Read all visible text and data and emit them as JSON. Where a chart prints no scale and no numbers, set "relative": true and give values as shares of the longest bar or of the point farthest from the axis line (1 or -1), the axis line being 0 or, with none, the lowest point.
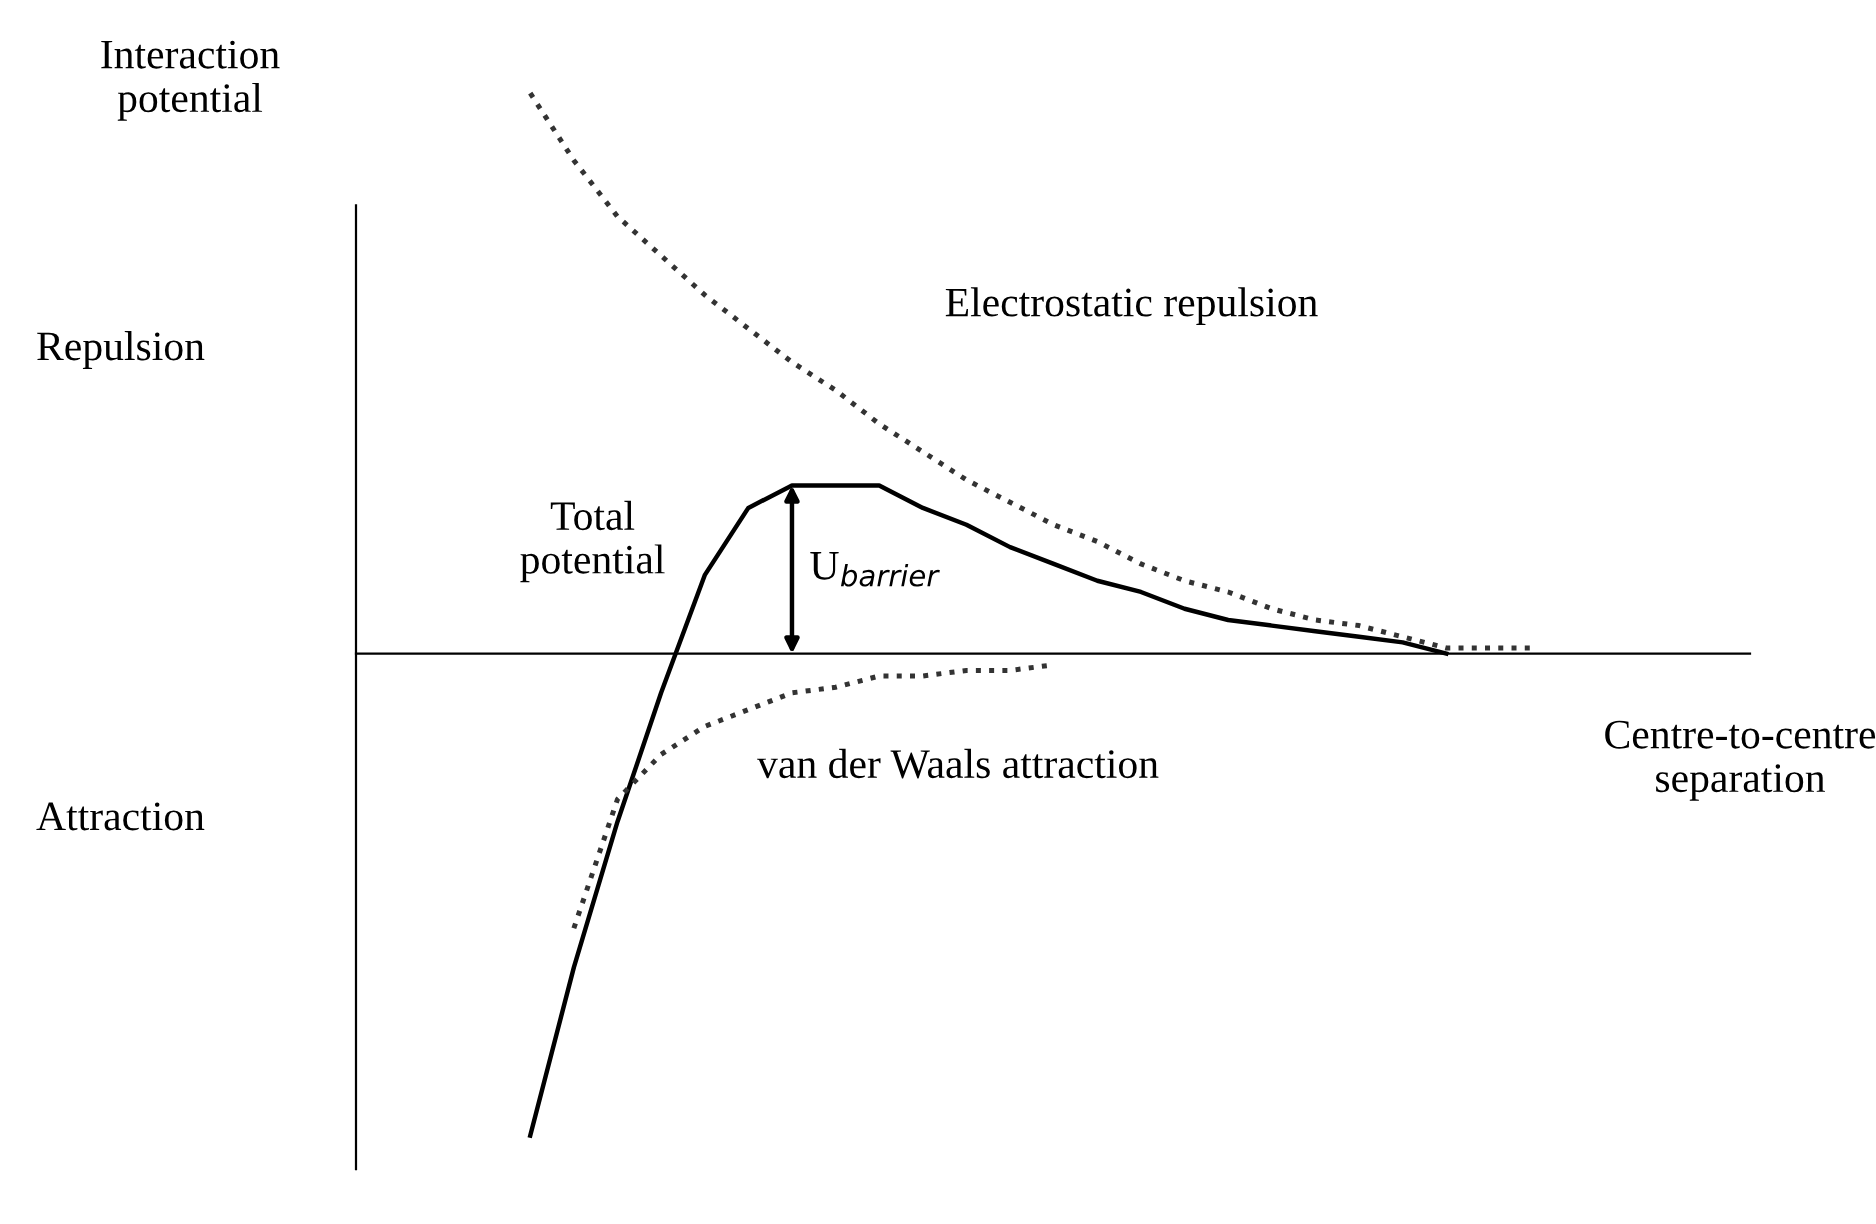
{
  "chart_data": {
    "type": "line",
    "relative": true,
    "xlabel": "Centre-to-centre\nseparation",
    "tick_labels": false,
    "categories": [
      null,
      null,
      null,
      null,
      null,
      null,
      null,
      null,
      null,
      null,
      null,
      null,
      null,
      null,
      null,
      null,
      null,
      null,
      null,
      null,
      null,
      null,
      null,
      null,
      null
    ],
    "series": [
      {
        "name": "Electrostatic repulsion",
        "color": "#333333",
        "line_style": "dotted",
        "values": [
          1.0,
          0.88,
          0.78,
          0.71,
          0.64,
          0.58,
          0.52,
          0.47,
          0.41,
          0.36,
          0.31,
          0.27,
          0.23,
          0.2,
          0.16,
          0.13,
          0.11,
          0.08,
          0.06,
          0.05,
          0.03,
          0.01,
          0.01,
          0.01,
          null
        ]
      },
      {
        "name": "Total potential",
        "color": "#000000",
        "line_style": "solid",
        "values": [
          -0.86,
          -0.56,
          -0.3,
          -0.07,
          0.14,
          0.26,
          0.3,
          0.3,
          0.3,
          0.26,
          0.23,
          0.19,
          0.16,
          0.13,
          0.11,
          0.08,
          0.06,
          0.05,
          0.04,
          0.03,
          0.02,
          0.0,
          null,
          null,
          null
        ]
      },
      {
        "name": "van der Waals attraction",
        "color": "#333333",
        "line_style": "dotted",
        "values": [
          null,
          -0.49,
          -0.26,
          -0.18,
          -0.13,
          -0.1,
          -0.07,
          -0.06,
          -0.04,
          -0.04,
          -0.03,
          -0.03,
          -0.02,
          null,
          null,
          null,
          null,
          null,
          null,
          null,
          null,
          null,
          null,
          null,
          null
        ]
      }
    ],
    "annotations": [
      "Interaction\npotential",
      "Repulsion",
      "Attraction",
      {
        "text": "U$_{barrier}$",
        "y": 0.3
      }
    ]
  }
}
